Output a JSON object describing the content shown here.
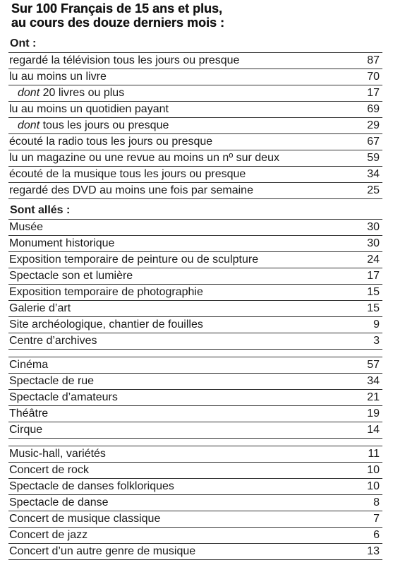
{
  "title": {
    "line1": "Sur 100 Français de 15 ans et plus,",
    "line2": "au cours des douze derniers mois :"
  },
  "section_ont": {
    "heading": "Ont :",
    "rows": [
      {
        "label": "regardé la télévision tous les jours ou presque",
        "value": "87"
      },
      {
        "label": "lu au moins un livre",
        "value": "70"
      },
      {
        "prefix": "dont",
        "label": " 20 livres ou plus",
        "value": "17"
      },
      {
        "label": "lu au moins un quotidien payant",
        "value": "69"
      },
      {
        "prefix": "dont",
        "label": " tous les jours ou presque",
        "value": "29"
      },
      {
        "label": "écouté la radio tous les jours ou presque",
        "value": "67"
      },
      {
        "label": "lu un magazine ou une revue au moins un nº sur deux",
        "value": "59"
      },
      {
        "label": "écouté de la musique tous les jours ou presque",
        "value": "34"
      },
      {
        "label": "regardé des DVD au moins une fois par semaine",
        "value": "25"
      }
    ]
  },
  "section_alles": {
    "heading": "Sont allés :",
    "group1": [
      {
        "label": "Musée",
        "value": "30"
      },
      {
        "label": "Monument historique",
        "value": "30"
      },
      {
        "label": "Exposition temporaire de peinture ou de sculpture",
        "value": "24"
      },
      {
        "label": "Spectacle son et lumière",
        "value": "17"
      },
      {
        "label": "Exposition temporaire de photographie",
        "value": "15"
      },
      {
        "label": "Galerie d’art",
        "value": "15"
      },
      {
        "label": "Site archéologique, chantier de fouilles",
        "value": "9"
      },
      {
        "label": "Centre d’archives",
        "value": "3"
      }
    ],
    "group2": [
      {
        "label": "Cinéma",
        "value": "57"
      },
      {
        "label": "Spectacle de rue",
        "value": "34"
      },
      {
        "label": "Spectacle d’amateurs",
        "value": "21"
      },
      {
        "label": "Théâtre",
        "value": "19"
      },
      {
        "label": "Cirque",
        "value": "14"
      }
    ],
    "group3": [
      {
        "label": "Music-hall, variétés",
        "value": "11"
      },
      {
        "label": "Concert de rock",
        "value": "10"
      },
      {
        "label": "Spectacle de danses folkloriques",
        "value": "10"
      },
      {
        "label": "Spectacle de danse",
        "value": "8"
      },
      {
        "label": "Concert de musique classique",
        "value": "7"
      },
      {
        "label": "Concert de jazz",
        "value": "6"
      },
      {
        "label": "Concert d’un autre genre de musique",
        "value": "13"
      }
    ]
  }
}
